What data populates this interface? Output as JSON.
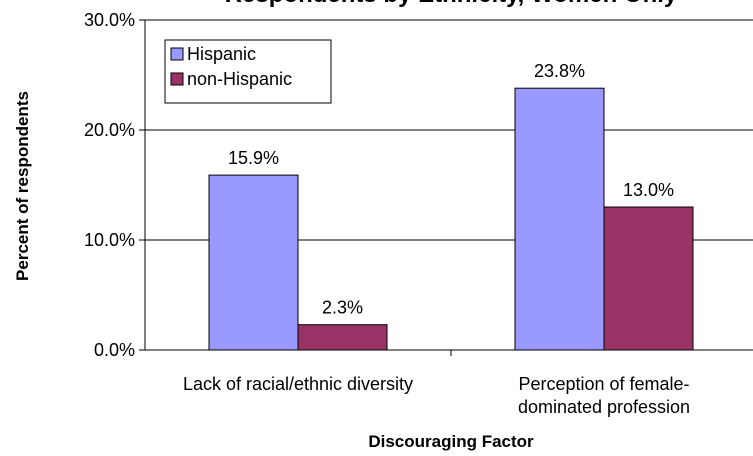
{
  "chart_data": {
    "type": "bar",
    "title": "Respondents by Ethnicity, Women Only",
    "xlabel": "Discouraging Factor",
    "ylabel": "Percent of respondents",
    "ylim": [
      0,
      30
    ],
    "yticks": [
      "0.0%",
      "10.0%",
      "20.0%",
      "30.0%"
    ],
    "categories": [
      [
        "Lack of racial/ethnic diversity"
      ],
      [
        "Perception of female-",
        "dominated profession"
      ]
    ],
    "series": [
      {
        "name": "Hispanic",
        "values": [
          15.9,
          23.8
        ],
        "labels": [
          "15.9%",
          "23.8%"
        ],
        "color": "#9999ff"
      },
      {
        "name": "non-Hispanic",
        "values": [
          2.3,
          13.0
        ],
        "labels": [
          "2.3%",
          "13.0%"
        ],
        "color": "#993366"
      }
    ],
    "legend": "top-left",
    "grid": true
  }
}
